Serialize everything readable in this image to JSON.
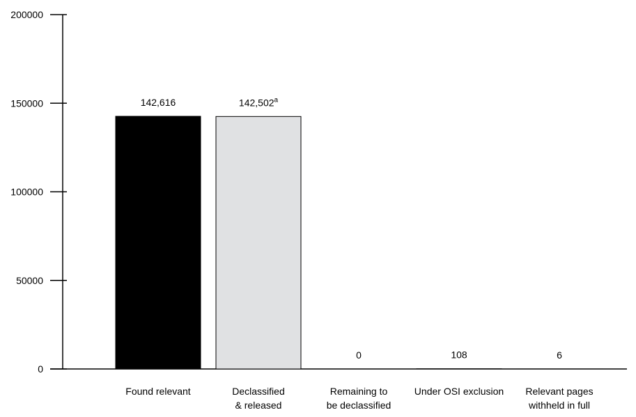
{
  "chart_data": {
    "type": "bar",
    "categories": [
      [
        "Found relevant"
      ],
      [
        "Declassified",
        "& released"
      ],
      [
        "Remaining to",
        "be declassified"
      ],
      [
        "Under OSI exclusion"
      ],
      [
        "Relevant pages",
        "withheld in full"
      ]
    ],
    "values": [
      142616,
      142502,
      0,
      108,
      6
    ],
    "data_labels": [
      "142,616",
      "142,502",
      "0",
      "108",
      "6"
    ],
    "data_label_superscripts": [
      "",
      "a",
      "",
      "",
      ""
    ],
    "bar_colors": [
      "#000000",
      "#e0e1e3",
      "#e0e1e3",
      "#e0e1e3",
      "#e0e1e3"
    ],
    "yticks": [
      0,
      50000,
      100000,
      150000,
      200000
    ],
    "ytick_labels": [
      "0",
      "50000",
      "100000",
      "150000",
      "200000"
    ],
    "ylim": [
      0,
      200000
    ],
    "title": "",
    "xlabel": "",
    "ylabel": "",
    "grid": false,
    "legend": "none"
  }
}
